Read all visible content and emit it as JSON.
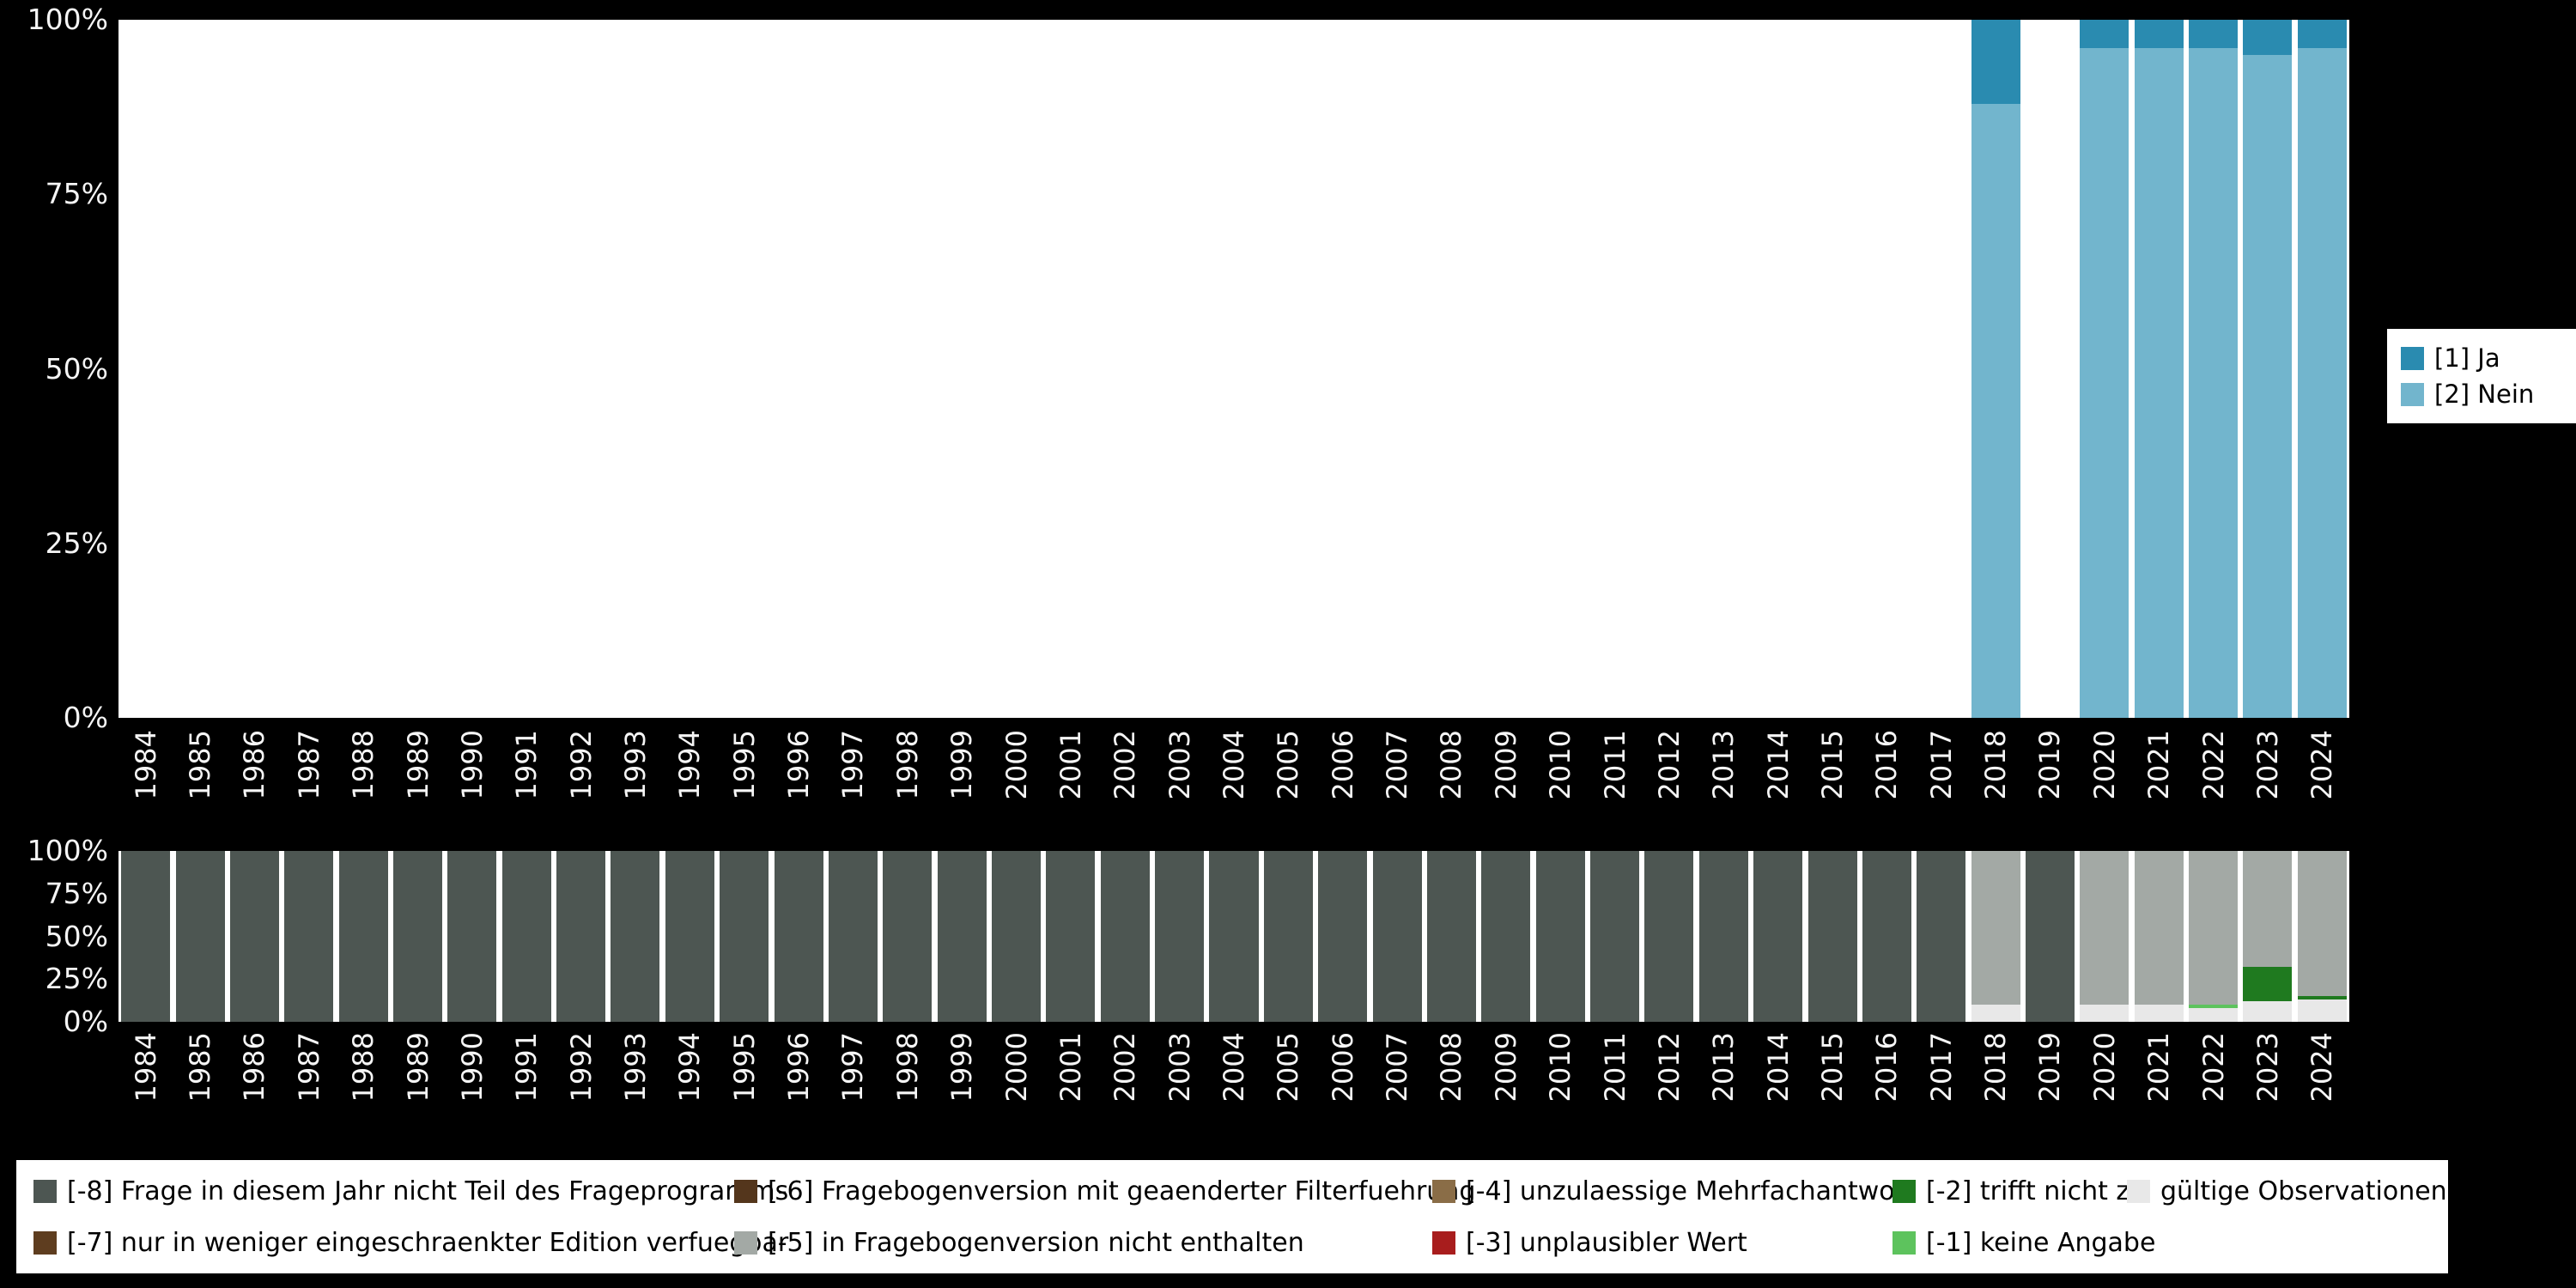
{
  "background_color": "#000000",
  "axis_text_color": "#f5f5f5",
  "chart_data": [
    {
      "name": "variable-responses",
      "type": "bar",
      "stacked": true,
      "grid": false,
      "ylim": [
        0,
        100
      ],
      "yticks": [
        0,
        25,
        50,
        75,
        100
      ],
      "ytick_labels": [
        "0%",
        "25%",
        "50%",
        "75%",
        "100%"
      ],
      "legend_position": "right",
      "x": [
        1984,
        1985,
        1986,
        1987,
        1988,
        1989,
        1990,
        1991,
        1992,
        1993,
        1994,
        1995,
        1996,
        1997,
        1998,
        1999,
        2000,
        2001,
        2002,
        2003,
        2004,
        2005,
        2006,
        2007,
        2008,
        2009,
        2010,
        2011,
        2012,
        2013,
        2014,
        2015,
        2016,
        2017,
        2018,
        2019,
        2020,
        2021,
        2022,
        2023,
        2024
      ],
      "series": [
        {
          "name": "[2] Nein",
          "color": "#72b5cd",
          "values": [
            0,
            0,
            0,
            0,
            0,
            0,
            0,
            0,
            0,
            0,
            0,
            0,
            0,
            0,
            0,
            0,
            0,
            0,
            0,
            0,
            0,
            0,
            0,
            0,
            0,
            0,
            0,
            0,
            0,
            0,
            0,
            0,
            0,
            0,
            88,
            0,
            96,
            96,
            96,
            95,
            96
          ]
        },
        {
          "name": "[1] Ja",
          "color": "#2a8bb0",
          "values": [
            0,
            0,
            0,
            0,
            0,
            0,
            0,
            0,
            0,
            0,
            0,
            0,
            0,
            0,
            0,
            0,
            0,
            0,
            0,
            0,
            0,
            0,
            0,
            0,
            0,
            0,
            0,
            0,
            0,
            0,
            0,
            0,
            0,
            0,
            12,
            0,
            4,
            4,
            4,
            5,
            4
          ]
        }
      ],
      "legend": [
        {
          "label": "[1] Ja",
          "color": "#2a8bb0"
        },
        {
          "label": "[2] Nein",
          "color": "#72b5cd"
        }
      ]
    },
    {
      "name": "missing-values",
      "type": "bar",
      "stacked": true,
      "grid": false,
      "ylim": [
        0,
        100
      ],
      "yticks": [
        0,
        25,
        50,
        75,
        100
      ],
      "ytick_labels": [
        "0%",
        "25%",
        "50%",
        "75%",
        "100%"
      ],
      "legend_position": "bottom",
      "x": [
        1984,
        1985,
        1986,
        1987,
        1988,
        1989,
        1990,
        1991,
        1992,
        1993,
        1994,
        1995,
        1996,
        1997,
        1998,
        1999,
        2000,
        2001,
        2002,
        2003,
        2004,
        2005,
        2006,
        2007,
        2008,
        2009,
        2010,
        2011,
        2012,
        2013,
        2014,
        2015,
        2016,
        2017,
        2018,
        2019,
        2020,
        2021,
        2022,
        2023,
        2024
      ],
      "series": [
        {
          "name": "gültige Observationen",
          "color": "#e8e8e8",
          "values": [
            0,
            0,
            0,
            0,
            0,
            0,
            0,
            0,
            0,
            0,
            0,
            0,
            0,
            0,
            0,
            0,
            0,
            0,
            0,
            0,
            0,
            0,
            0,
            0,
            0,
            0,
            0,
            0,
            0,
            0,
            0,
            0,
            0,
            0,
            10,
            0,
            10,
            10,
            8,
            12,
            13
          ]
        },
        {
          "name": "[-1] keine Angabe",
          "color": "#5dc35d",
          "values": [
            0,
            0,
            0,
            0,
            0,
            0,
            0,
            0,
            0,
            0,
            0,
            0,
            0,
            0,
            0,
            0,
            0,
            0,
            0,
            0,
            0,
            0,
            0,
            0,
            0,
            0,
            0,
            0,
            0,
            0,
            0,
            0,
            0,
            0,
            0,
            0,
            0,
            0,
            2,
            0,
            0
          ]
        },
        {
          "name": "[-2] trifft nicht zu",
          "color": "#1f7a1f",
          "values": [
            0,
            0,
            0,
            0,
            0,
            0,
            0,
            0,
            0,
            0,
            0,
            0,
            0,
            0,
            0,
            0,
            0,
            0,
            0,
            0,
            0,
            0,
            0,
            0,
            0,
            0,
            0,
            0,
            0,
            0,
            0,
            0,
            0,
            0,
            0,
            0,
            0,
            0,
            0,
            20,
            2
          ]
        },
        {
          "name": "[-3] unplausibler Wert",
          "color": "#a81d1d",
          "values": [
            0,
            0,
            0,
            0,
            0,
            0,
            0,
            0,
            0,
            0,
            0,
            0,
            0,
            0,
            0,
            0,
            0,
            0,
            0,
            0,
            0,
            0,
            0,
            0,
            0,
            0,
            0,
            0,
            0,
            0,
            0,
            0,
            0,
            0,
            0,
            0,
            0,
            0,
            0,
            0,
            0
          ]
        },
        {
          "name": "[-4] unzulaessige Mehrfachantwort",
          "color": "#8a6d47",
          "values": [
            0,
            0,
            0,
            0,
            0,
            0,
            0,
            0,
            0,
            0,
            0,
            0,
            0,
            0,
            0,
            0,
            0,
            0,
            0,
            0,
            0,
            0,
            0,
            0,
            0,
            0,
            0,
            0,
            0,
            0,
            0,
            0,
            0,
            0,
            0,
            0,
            0,
            0,
            0,
            0,
            0
          ]
        },
        {
          "name": "[-5] in Fragebogenversion nicht enthalten",
          "color": "#a3a9a5",
          "values": [
            0,
            0,
            0,
            0,
            0,
            0,
            0,
            0,
            0,
            0,
            0,
            0,
            0,
            0,
            0,
            0,
            0,
            0,
            0,
            0,
            0,
            0,
            0,
            0,
            0,
            0,
            0,
            0,
            0,
            0,
            0,
            0,
            0,
            0,
            90,
            0,
            90,
            90,
            90,
            68,
            85
          ]
        },
        {
          "name": "[-6] Fragebogenversion mit geaenderter Filterfuehrung",
          "color": "#54361c",
          "values": [
            0,
            0,
            0,
            0,
            0,
            0,
            0,
            0,
            0,
            0,
            0,
            0,
            0,
            0,
            0,
            0,
            0,
            0,
            0,
            0,
            0,
            0,
            0,
            0,
            0,
            0,
            0,
            0,
            0,
            0,
            0,
            0,
            0,
            0,
            0,
            0,
            0,
            0,
            0,
            0,
            0
          ]
        },
        {
          "name": "[-7] nur in weniger eingeschraenkter Edition verfuegbar",
          "color": "#5e3d1f",
          "values": [
            0,
            0,
            0,
            0,
            0,
            0,
            0,
            0,
            0,
            0,
            0,
            0,
            0,
            0,
            0,
            0,
            0,
            0,
            0,
            0,
            0,
            0,
            0,
            0,
            0,
            0,
            0,
            0,
            0,
            0,
            0,
            0,
            0,
            0,
            0,
            0,
            0,
            0,
            0,
            0,
            0
          ]
        },
        {
          "name": "[-8] Frage in diesem Jahr nicht Teil des Frageprogramms",
          "color": "#4d5652",
          "values": [
            100,
            100,
            100,
            100,
            100,
            100,
            100,
            100,
            100,
            100,
            100,
            100,
            100,
            100,
            100,
            100,
            100,
            100,
            100,
            100,
            100,
            100,
            100,
            100,
            100,
            100,
            100,
            100,
            100,
            100,
            100,
            100,
            100,
            100,
            0,
            100,
            0,
            0,
            0,
            0,
            0
          ]
        }
      ],
      "legend": [
        {
          "label": "[-8] Frage in diesem Jahr nicht Teil des Frageprogramms",
          "color": "#4d5652"
        },
        {
          "label": "[-7] nur in weniger eingeschraenkter Edition verfuegbar",
          "color": "#5e3d1f"
        },
        {
          "label": "[-6] Fragebogenversion mit geaenderter Filterfuehrung",
          "color": "#54361c"
        },
        {
          "label": "[-5] in Fragebogenversion nicht enthalten",
          "color": "#a3a9a5"
        },
        {
          "label": "[-4] unzulaessige Mehrfachantwort",
          "color": "#8a6d47"
        },
        {
          "label": "[-3] unplausibler Wert",
          "color": "#a81d1d"
        },
        {
          "label": "[-2] trifft nicht zu",
          "color": "#1f7a1f"
        },
        {
          "label": "[-1] keine Angabe",
          "color": "#5dc35d"
        },
        {
          "label": "gültige Observationen",
          "color": "#e8e8e8"
        }
      ]
    }
  ]
}
